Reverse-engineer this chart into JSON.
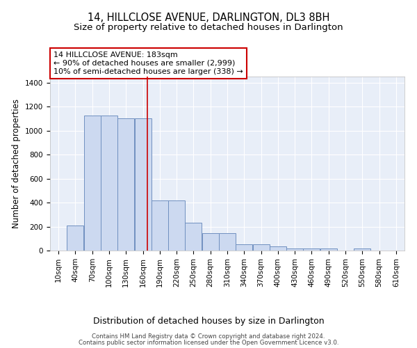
{
  "title": "14, HILLCLOSE AVENUE, DARLINGTON, DL3 8BH",
  "subtitle": "Size of property relative to detached houses in Darlington",
  "xlabel": "Distribution of detached houses by size in Darlington",
  "ylabel": "Number of detached properties",
  "footnote1": "Contains HM Land Registry data © Crown copyright and database right 2024.",
  "footnote2": "Contains public sector information licensed under the Open Government Licence v3.0.",
  "bins": [
    10,
    40,
    70,
    100,
    130,
    160,
    190,
    220,
    250,
    280,
    310,
    340,
    370,
    400,
    430,
    460,
    490,
    520,
    550,
    580,
    610
  ],
  "heights": [
    0,
    210,
    1125,
    1125,
    1100,
    1100,
    420,
    420,
    230,
    145,
    145,
    55,
    55,
    35,
    20,
    15,
    15,
    0,
    15,
    0,
    0
  ],
  "bar_color": "#ccd9f0",
  "bar_edge_color": "#7090c0",
  "bar_linewidth": 0.7,
  "vline_x": 183,
  "vline_color": "#cc0000",
  "vline_linewidth": 1.2,
  "annotation_text": "14 HILLCLOSE AVENUE: 183sqm\n← 90% of detached houses are smaller (2,999)\n10% of semi-detached houses are larger (338) →",
  "annotation_box_color": "white",
  "annotation_edge_color": "#cc0000",
  "bg_color": "#e8eef8",
  "ylim": [
    0,
    1450
  ],
  "yticks": [
    0,
    200,
    400,
    600,
    800,
    1000,
    1200,
    1400
  ],
  "title_fontsize": 10.5,
  "subtitle_fontsize": 9.5,
  "xlabel_fontsize": 9,
  "ylabel_fontsize": 8.5,
  "annotation_fontsize": 8,
  "tick_fontsize": 7.5,
  "figsize": [
    6.0,
    5.0
  ],
  "dpi": 100
}
